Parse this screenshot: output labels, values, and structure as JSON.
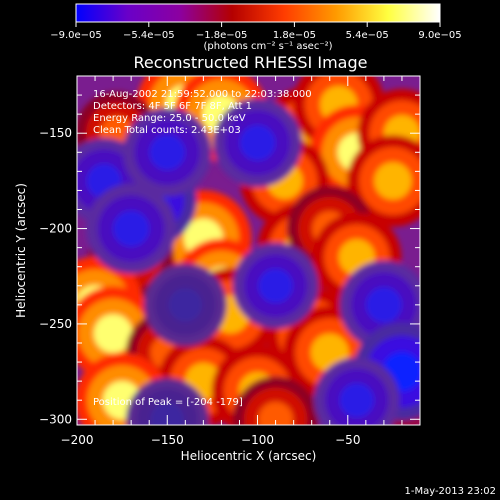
{
  "chart_data": {
    "type": "heatmap",
    "title": "Reconstructed RHESSI Image",
    "xlabel": "Heliocentric X (arcsec)",
    "ylabel": "Heliocentric Y (arcsec)",
    "xlim": [
      -200,
      -10
    ],
    "ylim": [
      -303,
      -120
    ],
    "x_ticks": [
      {
        "value": -200,
        "label": "−200"
      },
      {
        "value": -150,
        "label": "−150"
      },
      {
        "value": -100,
        "label": "−100"
      },
      {
        "value": -50,
        "label": "−50"
      }
    ],
    "y_ticks": [
      {
        "value": -150,
        "label": "−150"
      },
      {
        "value": -200,
        "label": "−200"
      },
      {
        "value": -250,
        "label": "−250"
      },
      {
        "value": -300,
        "label": "−300"
      }
    ],
    "colorbar": {
      "range": [
        -9e-05,
        9e-05
      ],
      "tick_values": [
        -9e-05,
        -5.4e-05,
        -1.8e-05,
        1.8e-05,
        5.4e-05,
        9e-05
      ],
      "tick_labels": [
        "−9.0e−05",
        "−5.4e−05",
        "−1.8e−05",
        "1.8e−05",
        "5.4e−05",
        "9.0e−05"
      ],
      "units_label": "(photons cm⁻² s⁻¹ asec⁻²)",
      "colors": [
        "#0000ff",
        "#6a00c8",
        "#8c00a0",
        "#b40000",
        "#ff3c00",
        "#ff9a00",
        "#ffff40",
        "#ffffff"
      ]
    },
    "annotations": [
      "16-Aug-2002 21:59:52.000 to 22:03:38.000",
      "Detectors: 4F 5F 6F 7F 8F, Att 1",
      "Energy Range: 25.0 - 50.0 keV",
      "Clean      Total counts: 2.43E+03"
    ],
    "peak_label": "Position of Peak = [-204 -179]",
    "blobs": [
      {
        "x": -140,
        "y": -135,
        "v": 1.0
      },
      {
        "x": -120,
        "y": -140,
        "v": 0.9
      },
      {
        "x": -72,
        "y": -150,
        "v": 0.85
      },
      {
        "x": -55,
        "y": -135,
        "v": 0.8
      },
      {
        "x": -45,
        "y": -160,
        "v": 0.9
      },
      {
        "x": -20,
        "y": -150,
        "v": 0.7
      },
      {
        "x": -25,
        "y": -175,
        "v": 0.8
      },
      {
        "x": -178,
        "y": -150,
        "v": 0.5
      },
      {
        "x": -85,
        "y": -175,
        "v": 0.7
      },
      {
        "x": -75,
        "y": -210,
        "v": 0.75
      },
      {
        "x": -60,
        "y": -200,
        "v": 0.6
      },
      {
        "x": -45,
        "y": -215,
        "v": 0.7
      },
      {
        "x": -130,
        "y": -205,
        "v": 0.95
      },
      {
        "x": -120,
        "y": -230,
        "v": 0.9
      },
      {
        "x": -115,
        "y": -245,
        "v": 0.85
      },
      {
        "x": -170,
        "y": -215,
        "v": 0.6
      },
      {
        "x": -190,
        "y": -240,
        "v": 0.95
      },
      {
        "x": -180,
        "y": -255,
        "v": 0.9
      },
      {
        "x": -150,
        "y": -265,
        "v": 0.5
      },
      {
        "x": -70,
        "y": -255,
        "v": 0.8
      },
      {
        "x": -60,
        "y": -265,
        "v": 0.85
      },
      {
        "x": -130,
        "y": -280,
        "v": 0.75
      },
      {
        "x": -100,
        "y": -285,
        "v": 0.8
      },
      {
        "x": -175,
        "y": -290,
        "v": 0.9
      },
      {
        "x": -90,
        "y": -300,
        "v": 0.6
      },
      {
        "x": -20,
        "y": -255,
        "v": 0.55
      },
      {
        "x": -18,
        "y": -290,
        "v": 0.35
      },
      {
        "x": -160,
        "y": -185,
        "v": -0.9
      },
      {
        "x": -185,
        "y": -175,
        "v": -0.6
      },
      {
        "x": -150,
        "y": -160,
        "v": -0.7
      },
      {
        "x": -170,
        "y": -200,
        "v": -0.75
      },
      {
        "x": -100,
        "y": -155,
        "v": -0.7
      },
      {
        "x": -140,
        "y": -240,
        "v": -0.5
      },
      {
        "x": -30,
        "y": -240,
        "v": -0.7
      },
      {
        "x": -20,
        "y": -275,
        "v": -1.0
      },
      {
        "x": -45,
        "y": -290,
        "v": -0.6
      },
      {
        "x": -90,
        "y": -230,
        "v": -0.6
      },
      {
        "x": -150,
        "y": -300,
        "v": -0.5
      }
    ]
  },
  "footer": {
    "timestamp": "1-May-2013 23:02"
  }
}
